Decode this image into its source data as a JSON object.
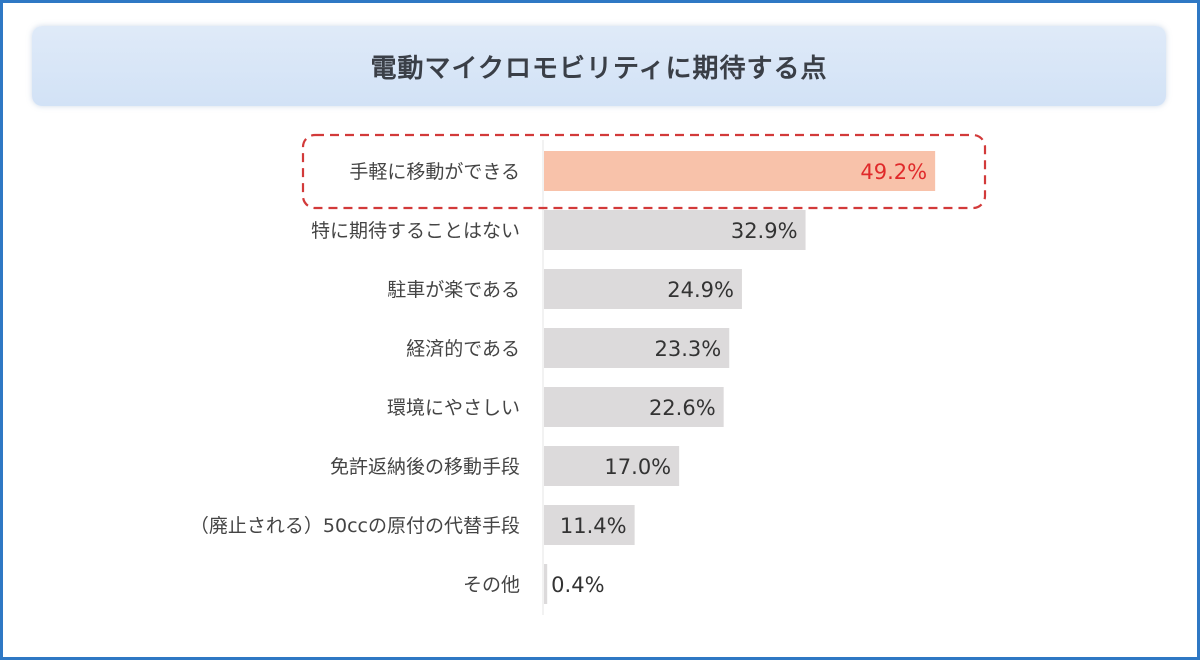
{
  "title": "電動マイクロモビリティに期待する点",
  "colors": {
    "highlight_bar": "#f8c2aa",
    "bar": "#dcdadb",
    "highlight_value": "#e02a2a",
    "value": "#333333",
    "highlight_box": "#d23a3a",
    "frame": "#2f78c4"
  },
  "chart_data": {
    "type": "bar",
    "orientation": "horizontal",
    "unit": "%",
    "xlim": [
      0,
      50
    ],
    "grid": false,
    "highlight_index": 0,
    "categories": [
      "手軽に移動ができる",
      "特に期待することはない",
      "駐車が楽である",
      "経済的である",
      "環境にやさしい",
      "免許返納後の移動手段",
      "（廃止される）50ccの原付の代替手段",
      "その他"
    ],
    "values": [
      49.2,
      32.9,
      24.9,
      23.3,
      22.6,
      17.0,
      11.4,
      0.4
    ],
    "value_labels": [
      "49.2%",
      "32.9%",
      "24.9%",
      "23.3%",
      "22.6%",
      "17.0%",
      "11.4%",
      "0.4%"
    ]
  }
}
